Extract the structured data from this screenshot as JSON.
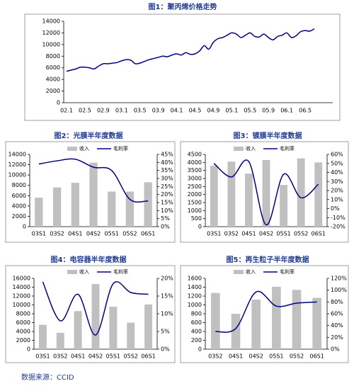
{
  "chart_data": [
    {
      "type": "line",
      "title": "图1：聚丙烯价格走势",
      "categories": [
        "02.1",
        null,
        null,
        null,
        "02.5",
        null,
        null,
        null,
        "02.9",
        null,
        null,
        null,
        "03.1",
        null,
        null,
        null,
        "03.5",
        null,
        null,
        null,
        "03.9",
        null,
        null,
        null,
        "04.1",
        null,
        null,
        null,
        "04.5",
        null,
        null,
        null,
        "04.9",
        null,
        null,
        null,
        "05.1",
        null,
        null,
        null,
        "05.5",
        null,
        null,
        null,
        "05.9",
        null,
        null,
        null,
        "06.1",
        null,
        null,
        null,
        "06.5",
        null,
        null
      ],
      "series": [
        {
          "name": null,
          "color": "#000080",
          "values": [
            5400,
            5600,
            5800,
            6100,
            6100,
            6000,
            5800,
            6300,
            6700,
            6700,
            6800,
            6900,
            7200,
            7400,
            7300,
            6700,
            6800,
            7100,
            7400,
            7600,
            7800,
            8000,
            7900,
            8200,
            8400,
            8200,
            8600,
            8300,
            8400,
            8900,
            9800,
            9200,
            10400,
            11000,
            11200,
            11600,
            12000,
            11800,
            11200,
            11600,
            12000,
            11400,
            11300,
            11800,
            11200,
            10800,
            11400,
            11600,
            12000,
            11200,
            11500,
            12200,
            12400,
            12300,
            12700
          ]
        }
      ],
      "ylim": [
        0,
        14000
      ],
      "yticks": [
        0,
        2000,
        4000,
        6000,
        8000,
        10000,
        12000,
        14000
      ]
    },
    {
      "type": "combo",
      "title": "图2：光膜半年度数据",
      "categories": [
        "03S1",
        "03S2",
        "04S1",
        "04S2",
        "05S1",
        "05S2",
        "06S1"
      ],
      "series": [
        {
          "name": "收入",
          "type": "bar",
          "color": "#c0c0c0",
          "values": [
            5600,
            7600,
            8500,
            12400,
            6800,
            6800,
            8600
          ]
        },
        {
          "name": "毛利率",
          "type": "line",
          "axis": "y2",
          "color": "#000080",
          "values": [
            39,
            41,
            42,
            37,
            35,
            17,
            16
          ]
        }
      ],
      "ylim": [
        0,
        14000
      ],
      "yticks": [
        0,
        2000,
        4000,
        6000,
        8000,
        10000,
        12000,
        14000
      ],
      "y2lim": [
        0,
        45
      ],
      "y2ticks": [
        {
          "value": 0,
          "label": "0%"
        },
        {
          "value": 5,
          "label": "5%"
        },
        {
          "value": 10,
          "label": "10%"
        },
        {
          "value": 15,
          "label": "15%"
        },
        {
          "value": 20,
          "label": "20%"
        },
        {
          "value": 25,
          "label": "25%"
        },
        {
          "value": 30,
          "label": "30%"
        },
        {
          "value": 35,
          "label": "35%"
        },
        {
          "value": 40,
          "label": "40%"
        },
        {
          "value": 45,
          "label": "45%"
        }
      ]
    },
    {
      "type": "combo",
      "title": "图3：镀膜半年度数据",
      "categories": [
        "03S1",
        "03S2",
        "04S1",
        "04S2",
        "05S1",
        "05S2",
        "06S1"
      ],
      "series": [
        {
          "name": "收入",
          "type": "bar",
          "color": "#c0c0c0",
          "values": [
            3800,
            4050,
            3300,
            4150,
            2600,
            4250,
            4000
          ]
        },
        {
          "name": "毛利率",
          "type": "line",
          "axis": "y2",
          "color": "#000080",
          "values": [
            50,
            35,
            52,
            -18,
            38,
            12,
            27
          ]
        }
      ],
      "ylim": [
        0,
        4500
      ],
      "yticks": [
        0,
        500,
        1000,
        1500,
        2000,
        2500,
        3000,
        3500,
        4000,
        4500
      ],
      "y2lim": [
        -20,
        60
      ],
      "y2ticks": [
        {
          "value": -20,
          "label": "-20%"
        },
        {
          "value": -10,
          "label": "-10%"
        },
        {
          "value": 0,
          "label": "0%"
        },
        {
          "value": 10,
          "label": "10%"
        },
        {
          "value": 20,
          "label": "20%"
        },
        {
          "value": 30,
          "label": "30%"
        },
        {
          "value": 40,
          "label": "40%"
        },
        {
          "value": 50,
          "label": "50%"
        },
        {
          "value": 60,
          "label": "60%"
        }
      ]
    },
    {
      "type": "combo",
      "title": "图4：电容器半年度数据",
      "categories": [
        "03S1",
        "03S2",
        "04S1",
        "04S2",
        "05S1",
        "05S2",
        "06S1"
      ],
      "series": [
        {
          "name": "收入",
          "type": "bar",
          "color": "#c0c0c0",
          "values": [
            5500,
            3700,
            8600,
            14700,
            9600,
            6000,
            10100
          ]
        },
        {
          "name": "毛利率",
          "type": "line",
          "axis": "y2",
          "color": "#000080",
          "values": [
            19,
            8,
            15.5,
            4,
            18.5,
            16,
            15.5
          ]
        }
      ],
      "ylim": [
        0,
        16000
      ],
      "yticks": [
        0,
        2000,
        4000,
        6000,
        8000,
        10000,
        12000,
        14000,
        16000
      ],
      "y2lim": [
        0,
        20
      ],
      "y2ticks": [
        {
          "value": 0,
          "label": "0%"
        },
        {
          "value": 5,
          "label": "5%"
        },
        {
          "value": 10,
          "label": "10%"
        },
        {
          "value": 15,
          "label": "15%"
        },
        {
          "value": 20,
          "label": "20%"
        }
      ]
    },
    {
      "type": "combo",
      "title": "图5：再生粒子半年度数据",
      "categories": [
        "03S2",
        "04S1",
        "04S2",
        "05S1",
        "05S2",
        "06S1"
      ],
      "series": [
        {
          "name": "收入",
          "type": "bar",
          "color": "#c0c0c0",
          "values": [
            1270,
            800,
            1120,
            1410,
            1340,
            1160
          ]
        },
        {
          "name": "毛利率",
          "type": "line",
          "axis": "y2",
          "color": "#000080",
          "values": [
            30,
            35,
            97,
            73,
            78,
            80
          ]
        }
      ],
      "ylim": [
        0,
        1600
      ],
      "yticks": [
        0,
        200,
        400,
        600,
        800,
        1000,
        1200,
        1400,
        1600
      ],
      "y2lim": [
        0,
        120
      ],
      "y2ticks": [
        {
          "value": 0,
          "label": "0%"
        },
        {
          "value": 20,
          "label": "20%"
        },
        {
          "value": 40,
          "label": "40%"
        },
        {
          "value": 60,
          "label": "60%"
        },
        {
          "value": 80,
          "label": "80%"
        },
        {
          "value": 100,
          "label": "100%"
        },
        {
          "value": 120,
          "label": "120%"
        }
      ]
    }
  ],
  "source": "数据来源：CCID"
}
